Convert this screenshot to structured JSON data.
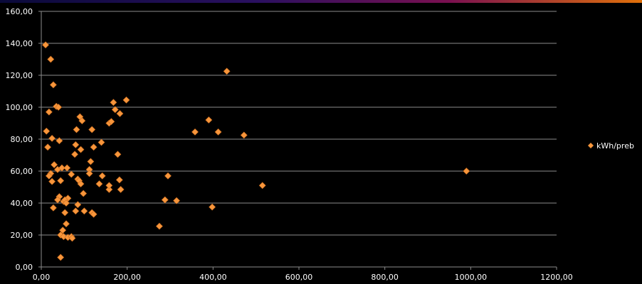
{
  "chart_data": {
    "type": "scatter",
    "title": "",
    "xlabel": "",
    "ylabel": "",
    "xlim": [
      0,
      1200
    ],
    "ylim": [
      0,
      160
    ],
    "x_ticks": [
      "0,00",
      "200,00",
      "400,00",
      "600,00",
      "800,00",
      "1000,00",
      "1200,00"
    ],
    "y_ticks": [
      "0,00",
      "20,00",
      "40,00",
      "60,00",
      "80,00",
      "100,00",
      "120,00",
      "140,00",
      "160,00"
    ],
    "grid": "horizontal",
    "legend_position": "right",
    "marker_color": "#f7963c",
    "series": [
      {
        "name": "kWh/preb",
        "points": [
          [
            10,
            139
          ],
          [
            22,
            130
          ],
          [
            28,
            114
          ],
          [
            35,
            100.5
          ],
          [
            40,
            100
          ],
          [
            18,
            97
          ],
          [
            12,
            85
          ],
          [
            25,
            80.5
          ],
          [
            42,
            79
          ],
          [
            15,
            75
          ],
          [
            30,
            64
          ],
          [
            22,
            58.5
          ],
          [
            18,
            57
          ],
          [
            25,
            53.5
          ],
          [
            38,
            61
          ],
          [
            48,
            62
          ],
          [
            60,
            62
          ],
          [
            70,
            58
          ],
          [
            45,
            54
          ],
          [
            28,
            37
          ],
          [
            42,
            44
          ],
          [
            38,
            42
          ],
          [
            52,
            41
          ],
          [
            62,
            43
          ],
          [
            55,
            42
          ],
          [
            58,
            40
          ],
          [
            55,
            34
          ],
          [
            58,
            27
          ],
          [
            50,
            23
          ],
          [
            45,
            20
          ],
          [
            52,
            19
          ],
          [
            62,
            18.5
          ],
          [
            70,
            19
          ],
          [
            72,
            18
          ],
          [
            45,
            6
          ],
          [
            80,
            76.5
          ],
          [
            78,
            70.5
          ],
          [
            85,
            55
          ],
          [
            88,
            54
          ],
          [
            92,
            52
          ],
          [
            82,
            86
          ],
          [
            90,
            94
          ],
          [
            95,
            91.5
          ],
          [
            92,
            73.5
          ],
          [
            98,
            46
          ],
          [
            85,
            39
          ],
          [
            80,
            35
          ],
          [
            100,
            35
          ],
          [
            112,
            61
          ],
          [
            115,
            66
          ],
          [
            112,
            58.5
          ],
          [
            118,
            86
          ],
          [
            122,
            75
          ],
          [
            118,
            34
          ],
          [
            122,
            33
          ],
          [
            135,
            52
          ],
          [
            142,
            57
          ],
          [
            140,
            78
          ],
          [
            158,
            90
          ],
          [
            163,
            91
          ],
          [
            168,
            103
          ],
          [
            172,
            98.5
          ],
          [
            178,
            70.5
          ],
          [
            158,
            48.5
          ],
          [
            158,
            51
          ],
          [
            182,
            54.5
          ],
          [
            183,
            96
          ],
          [
            185,
            48.5
          ],
          [
            198,
            104.5
          ],
          [
            275,
            25.5
          ],
          [
            288,
            42
          ],
          [
            295,
            57
          ],
          [
            315,
            41.5
          ],
          [
            358,
            84.5
          ],
          [
            390,
            92
          ],
          [
            398,
            37.5
          ],
          [
            412,
            84.5
          ],
          [
            432,
            122.5
          ],
          [
            472,
            82.5
          ],
          [
            515,
            51
          ],
          [
            990,
            60
          ]
        ]
      }
    ]
  }
}
